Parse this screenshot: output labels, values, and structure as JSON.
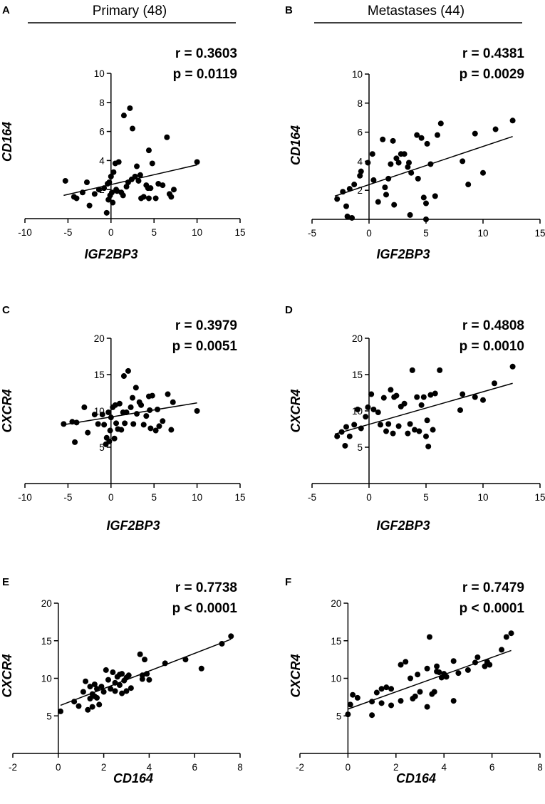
{
  "columns": [
    {
      "title": "Primary (48)"
    },
    {
      "title": "Metastases (44)"
    }
  ],
  "chart_data": [
    {
      "panel": "A",
      "type": "scatter",
      "xlabel": "IGF2BP3",
      "ylabel": "CD164",
      "r_text": "r = 0.3603",
      "p_text": "p = 0.0119",
      "xlim": [
        -10,
        15
      ],
      "ylim": [
        0,
        10
      ],
      "xticks": [
        -10,
        -5,
        0,
        5,
        10,
        15
      ],
      "yticks": [
        2,
        4,
        6,
        8,
        10
      ],
      "fit": {
        "x": [
          -5.5,
          10
        ],
        "y": [
          1.6,
          3.7
        ]
      },
      "points": [
        [
          -5.3,
          2.6
        ],
        [
          -4.3,
          1.5
        ],
        [
          -4,
          1.4
        ],
        [
          -3.3,
          1.8
        ],
        [
          -2.8,
          2.5
        ],
        [
          -2.5,
          0.9
        ],
        [
          -1.9,
          1.7
        ],
        [
          -1.4,
          2
        ],
        [
          -0.8,
          2.1
        ],
        [
          -0.5,
          0.4
        ],
        [
          -0.4,
          2.4
        ],
        [
          -0.3,
          1.3
        ],
        [
          -0.2,
          2.5
        ],
        [
          -0.1,
          1.6
        ],
        [
          0,
          2.9
        ],
        [
          0.1,
          1.8
        ],
        [
          0.2,
          1.1
        ],
        [
          0.3,
          3.2
        ],
        [
          0.5,
          3.8
        ],
        [
          0.6,
          2
        ],
        [
          0.9,
          3.9
        ],
        [
          0.7,
          1.9
        ],
        [
          1.2,
          1.8
        ],
        [
          1.4,
          1.6
        ],
        [
          1.5,
          7.1
        ],
        [
          1.8,
          2.2
        ],
        [
          2,
          2.5
        ],
        [
          2.2,
          7.6
        ],
        [
          2.4,
          2.7
        ],
        [
          2.5,
          6.2
        ],
        [
          2.8,
          2.9
        ],
        [
          3,
          3.6
        ],
        [
          3.2,
          2.6
        ],
        [
          3.4,
          3
        ],
        [
          3.5,
          1.4
        ],
        [
          3.8,
          1.5
        ],
        [
          4.1,
          2.3
        ],
        [
          4.3,
          2.1
        ],
        [
          4.4,
          4.7
        ],
        [
          4.4,
          1.4
        ],
        [
          4.6,
          2.1
        ],
        [
          4.8,
          3.8
        ],
        [
          5.2,
          1.4
        ],
        [
          5.5,
          2.4
        ],
        [
          6,
          2.3
        ],
        [
          6.5,
          5.6
        ],
        [
          6.8,
          1.7
        ],
        [
          7,
          1.5
        ],
        [
          7.3,
          2
        ],
        [
          10,
          3.9
        ]
      ]
    },
    {
      "panel": "B",
      "type": "scatter",
      "xlabel": "IGF2BP3",
      "ylabel": "CD164",
      "r_text": "r = 0.4381",
      "p_text": "p = 0.0029",
      "xlim": [
        -5,
        15
      ],
      "ylim": [
        0,
        10
      ],
      "xticks": [
        -5,
        0,
        5,
        10,
        15
      ],
      "yticks": [
        2,
        4,
        6,
        8,
        10
      ],
      "fit": {
        "x": [
          -3,
          12.6
        ],
        "y": [
          1.6,
          5.7
        ]
      },
      "points": [
        [
          -2.8,
          1.4
        ],
        [
          -2.3,
          1.9
        ],
        [
          -2,
          0.9
        ],
        [
          -1.9,
          0.2
        ],
        [
          -1.7,
          2.1
        ],
        [
          -1.5,
          0.1
        ],
        [
          -1.3,
          2.4
        ],
        [
          -0.8,
          3
        ],
        [
          -0.7,
          3.3
        ],
        [
          -0.1,
          3.9
        ],
        [
          0.3,
          4.5
        ],
        [
          0.4,
          2.7
        ],
        [
          0.8,
          1.2
        ],
        [
          1.2,
          5.5
        ],
        [
          1.4,
          2.2
        ],
        [
          1.5,
          1.7
        ],
        [
          1.7,
          2.8
        ],
        [
          1.9,
          3.8
        ],
        [
          2.1,
          5.4
        ],
        [
          2.2,
          1
        ],
        [
          2.4,
          4.2
        ],
        [
          2.6,
          3.9
        ],
        [
          2.8,
          4.5
        ],
        [
          3.1,
          4.5
        ],
        [
          3.4,
          3.6
        ],
        [
          3.5,
          3.9
        ],
        [
          3.6,
          0.3
        ],
        [
          3.7,
          3.2
        ],
        [
          4.2,
          5.8
        ],
        [
          4.3,
          2.8
        ],
        [
          4.6,
          5.6
        ],
        [
          4.8,
          1.5
        ],
        [
          5,
          0
        ],
        [
          5,
          1.1
        ],
        [
          5.1,
          5.2
        ],
        [
          5.4,
          3.8
        ],
        [
          5.8,
          1.6
        ],
        [
          6,
          5.8
        ],
        [
          6.3,
          6.6
        ],
        [
          8.2,
          4
        ],
        [
          8.7,
          2.4
        ],
        [
          9.3,
          5.9
        ],
        [
          10,
          3.2
        ],
        [
          11.1,
          6.2
        ],
        [
          12.6,
          6.8
        ]
      ]
    },
    {
      "panel": "C",
      "type": "scatter",
      "xlabel": "IGF2BP3",
      "ylabel": "CXCR4",
      "r_text": "r = 0.3979",
      "p_text": "p = 0.0051",
      "xlim": [
        -10,
        15
      ],
      "ylim": [
        0,
        20
      ],
      "xticks": [
        -10,
        -5,
        0,
        5,
        10,
        15
      ],
      "yticks": [
        5,
        10,
        15,
        20
      ],
      "fit": {
        "x": [
          -5.5,
          10
        ],
        "y": [
          8.1,
          11.1
        ]
      },
      "points": [
        [
          -5.5,
          8.2
        ],
        [
          -4.5,
          8.5
        ],
        [
          -4.2,
          5.7
        ],
        [
          -4,
          8.4
        ],
        [
          -3.1,
          10.5
        ],
        [
          -2.7,
          7
        ],
        [
          -1.9,
          9.5
        ],
        [
          -1.5,
          8.2
        ],
        [
          -1,
          9.5
        ],
        [
          -0.8,
          8.1
        ],
        [
          -0.6,
          5.4
        ],
        [
          -0.5,
          6.3
        ],
        [
          -0.3,
          9.8
        ],
        [
          -0.2,
          5.8
        ],
        [
          -0.1,
          7.3
        ],
        [
          0,
          9.1
        ],
        [
          0.2,
          10.5
        ],
        [
          0.4,
          6.2
        ],
        [
          0.5,
          10.8
        ],
        [
          0.6,
          8.3
        ],
        [
          0.8,
          7.5
        ],
        [
          1,
          11
        ],
        [
          1.2,
          7.4
        ],
        [
          1.4,
          9.8
        ],
        [
          1.5,
          14.8
        ],
        [
          1.6,
          8.3
        ],
        [
          1.8,
          9.8
        ],
        [
          2,
          15.5
        ],
        [
          2.3,
          10.5
        ],
        [
          2.5,
          11.8
        ],
        [
          2.6,
          8.2
        ],
        [
          2.9,
          13.2
        ],
        [
          3,
          9.6
        ],
        [
          3.3,
          11.2
        ],
        [
          3.5,
          10.8
        ],
        [
          3.8,
          8.1
        ],
        [
          4.1,
          9.3
        ],
        [
          4.4,
          12
        ],
        [
          4.5,
          10.1
        ],
        [
          4.6,
          7.6
        ],
        [
          4.8,
          12.1
        ],
        [
          5.2,
          7.3
        ],
        [
          5.4,
          10.2
        ],
        [
          5.6,
          7.9
        ],
        [
          6,
          8.6
        ],
        [
          6.6,
          12.3
        ],
        [
          7,
          7.4
        ],
        [
          7.2,
          11.2
        ],
        [
          10,
          10
        ]
      ]
    },
    {
      "panel": "D",
      "type": "scatter",
      "xlabel": "IGF2BP3",
      "ylabel": "CXCR4",
      "r_text": "r = 0.4808",
      "p_text": "p = 0.0010",
      "xlim": [
        -5,
        15
      ],
      "ylim": [
        0,
        20
      ],
      "xticks": [
        -5,
        0,
        5,
        10,
        15
      ],
      "yticks": [
        5,
        10,
        15,
        20
      ],
      "fit": {
        "x": [
          -3,
          12.6
        ],
        "y": [
          6.8,
          13.8
        ]
      },
      "points": [
        [
          -2.8,
          6.5
        ],
        [
          -2.4,
          7.1
        ],
        [
          -2.1,
          5.2
        ],
        [
          -2,
          7.8
        ],
        [
          -1.7,
          6.5
        ],
        [
          -1.3,
          8.1
        ],
        [
          -1,
          10.2
        ],
        [
          -0.7,
          7.6
        ],
        [
          -0.3,
          9.2
        ],
        [
          -0.1,
          10.5
        ],
        [
          0.2,
          12.3
        ],
        [
          0.4,
          10.2
        ],
        [
          0.8,
          9.8
        ],
        [
          1,
          8.1
        ],
        [
          1.3,
          11.8
        ],
        [
          1.5,
          7.2
        ],
        [
          1.7,
          8.2
        ],
        [
          1.9,
          12.9
        ],
        [
          2.1,
          6.9
        ],
        [
          2.2,
          11.9
        ],
        [
          2.4,
          12.1
        ],
        [
          2.6,
          7.9
        ],
        [
          2.8,
          10.6
        ],
        [
          3.1,
          11
        ],
        [
          3.4,
          6.9
        ],
        [
          3.6,
          8.2
        ],
        [
          3.8,
          15.6
        ],
        [
          4,
          7.4
        ],
        [
          4.2,
          11.9
        ],
        [
          4.4,
          7.2
        ],
        [
          4.6,
          10.8
        ],
        [
          4.8,
          11.9
        ],
        [
          5,
          6.5
        ],
        [
          5.1,
          8.7
        ],
        [
          5.2,
          5.1
        ],
        [
          5.4,
          12.2
        ],
        [
          5.6,
          7.4
        ],
        [
          5.8,
          12.4
        ],
        [
          6.2,
          15.6
        ],
        [
          8,
          10.1
        ],
        [
          8.2,
          12.3
        ],
        [
          9.3,
          11.9
        ],
        [
          10,
          11.5
        ],
        [
          11,
          13.8
        ],
        [
          12.6,
          16.1
        ]
      ]
    },
    {
      "panel": "E",
      "type": "scatter",
      "xlabel": "CD164",
      "ylabel": "CXCR4",
      "r_text": "r = 0.7738",
      "p_text": "p < 0.0001",
      "xlim": [
        -2,
        8
      ],
      "ylim": [
        0,
        20
      ],
      "xticks": [
        -2,
        0,
        2,
        4,
        6,
        8
      ],
      "yticks": [
        5,
        10,
        15,
        20
      ],
      "fit": {
        "x": [
          0.1,
          7.6
        ],
        "y": [
          6.4,
          15.2
        ]
      },
      "points": [
        [
          0.1,
          5.6
        ],
        [
          0.7,
          6.9
        ],
        [
          0.9,
          6.3
        ],
        [
          1.1,
          8.2
        ],
        [
          1.2,
          9.6
        ],
        [
          1.3,
          5.8
        ],
        [
          1.4,
          8.9
        ],
        [
          1.4,
          7.3
        ],
        [
          1.5,
          6.2
        ],
        [
          1.5,
          7.9
        ],
        [
          1.6,
          7.6
        ],
        [
          1.6,
          9.2
        ],
        [
          1.7,
          8.6
        ],
        [
          1.7,
          7.4
        ],
        [
          1.8,
          6.5
        ],
        [
          1.9,
          8.9
        ],
        [
          2,
          8.2
        ],
        [
          2.1,
          11.1
        ],
        [
          2.2,
          9.8
        ],
        [
          2.3,
          8.6
        ],
        [
          2.4,
          10.8
        ],
        [
          2.5,
          9.4
        ],
        [
          2.5,
          8.3
        ],
        [
          2.6,
          10.2
        ],
        [
          2.7,
          10.5
        ],
        [
          2.7,
          9.1
        ],
        [
          2.8,
          8
        ],
        [
          2.8,
          10.6
        ],
        [
          2.9,
          9.7
        ],
        [
          3,
          8.3
        ],
        [
          3,
          10.1
        ],
        [
          3.1,
          10.4
        ],
        [
          3.2,
          8.7
        ],
        [
          3.6,
          13.2
        ],
        [
          3.7,
          10.4
        ],
        [
          3.7,
          9.9
        ],
        [
          3.8,
          12.5
        ],
        [
          3.9,
          10.6
        ],
        [
          4,
          9.8
        ],
        [
          4.7,
          12
        ],
        [
          5.6,
          12.5
        ],
        [
          6.3,
          11.3
        ],
        [
          7.2,
          14.6
        ],
        [
          7.6,
          15.6
        ]
      ]
    },
    {
      "panel": "F",
      "type": "scatter",
      "xlabel": "CD164",
      "ylabel": "CXCR4",
      "r_text": "r = 0.7479",
      "p_text": "p < 0.0001",
      "xlim": [
        -2,
        8
      ],
      "ylim": [
        0,
        20
      ],
      "xticks": [
        -2,
        0,
        2,
        4,
        6,
        8
      ],
      "yticks": [
        5,
        10,
        15,
        20
      ],
      "fit": {
        "x": [
          0,
          6.8
        ],
        "y": [
          5.9,
          13.7
        ]
      },
      "points": [
        [
          0,
          5.2
        ],
        [
          0.1,
          6.5
        ],
        [
          0.2,
          7.8
        ],
        [
          0.4,
          7.4
        ],
        [
          1,
          5.1
        ],
        [
          1,
          6.9
        ],
        [
          1.2,
          8.1
        ],
        [
          1.4,
          6.7
        ],
        [
          1.4,
          8.6
        ],
        [
          1.6,
          8.8
        ],
        [
          1.8,
          6.4
        ],
        [
          1.8,
          8.6
        ],
        [
          2.2,
          11.8
        ],
        [
          2.2,
          7
        ],
        [
          2.4,
          12.2
        ],
        [
          2.6,
          10
        ],
        [
          2.7,
          7.3
        ],
        [
          2.8,
          7.6
        ],
        [
          2.9,
          10.5
        ],
        [
          3,
          8.2
        ],
        [
          3.3,
          11.3
        ],
        [
          3.3,
          6.2
        ],
        [
          3.4,
          15.5
        ],
        [
          3.5,
          7.9
        ],
        [
          3.6,
          8.2
        ],
        [
          3.7,
          11.6
        ],
        [
          3.7,
          10.9
        ],
        [
          3.8,
          10.8
        ],
        [
          3.9,
          10.1
        ],
        [
          4,
          10.6
        ],
        [
          4.1,
          10.2
        ],
        [
          4.4,
          7
        ],
        [
          4.4,
          12.3
        ],
        [
          4.6,
          10.7
        ],
        [
          5,
          11.1
        ],
        [
          5.3,
          12.1
        ],
        [
          5.4,
          12.8
        ],
        [
          5.7,
          11.6
        ],
        [
          5.8,
          11.9
        ],
        [
          5.8,
          12.2
        ],
        [
          5.9,
          11.8
        ],
        [
          6.4,
          13.8
        ],
        [
          6.6,
          15.5
        ],
        [
          6.8,
          16
        ]
      ]
    }
  ]
}
